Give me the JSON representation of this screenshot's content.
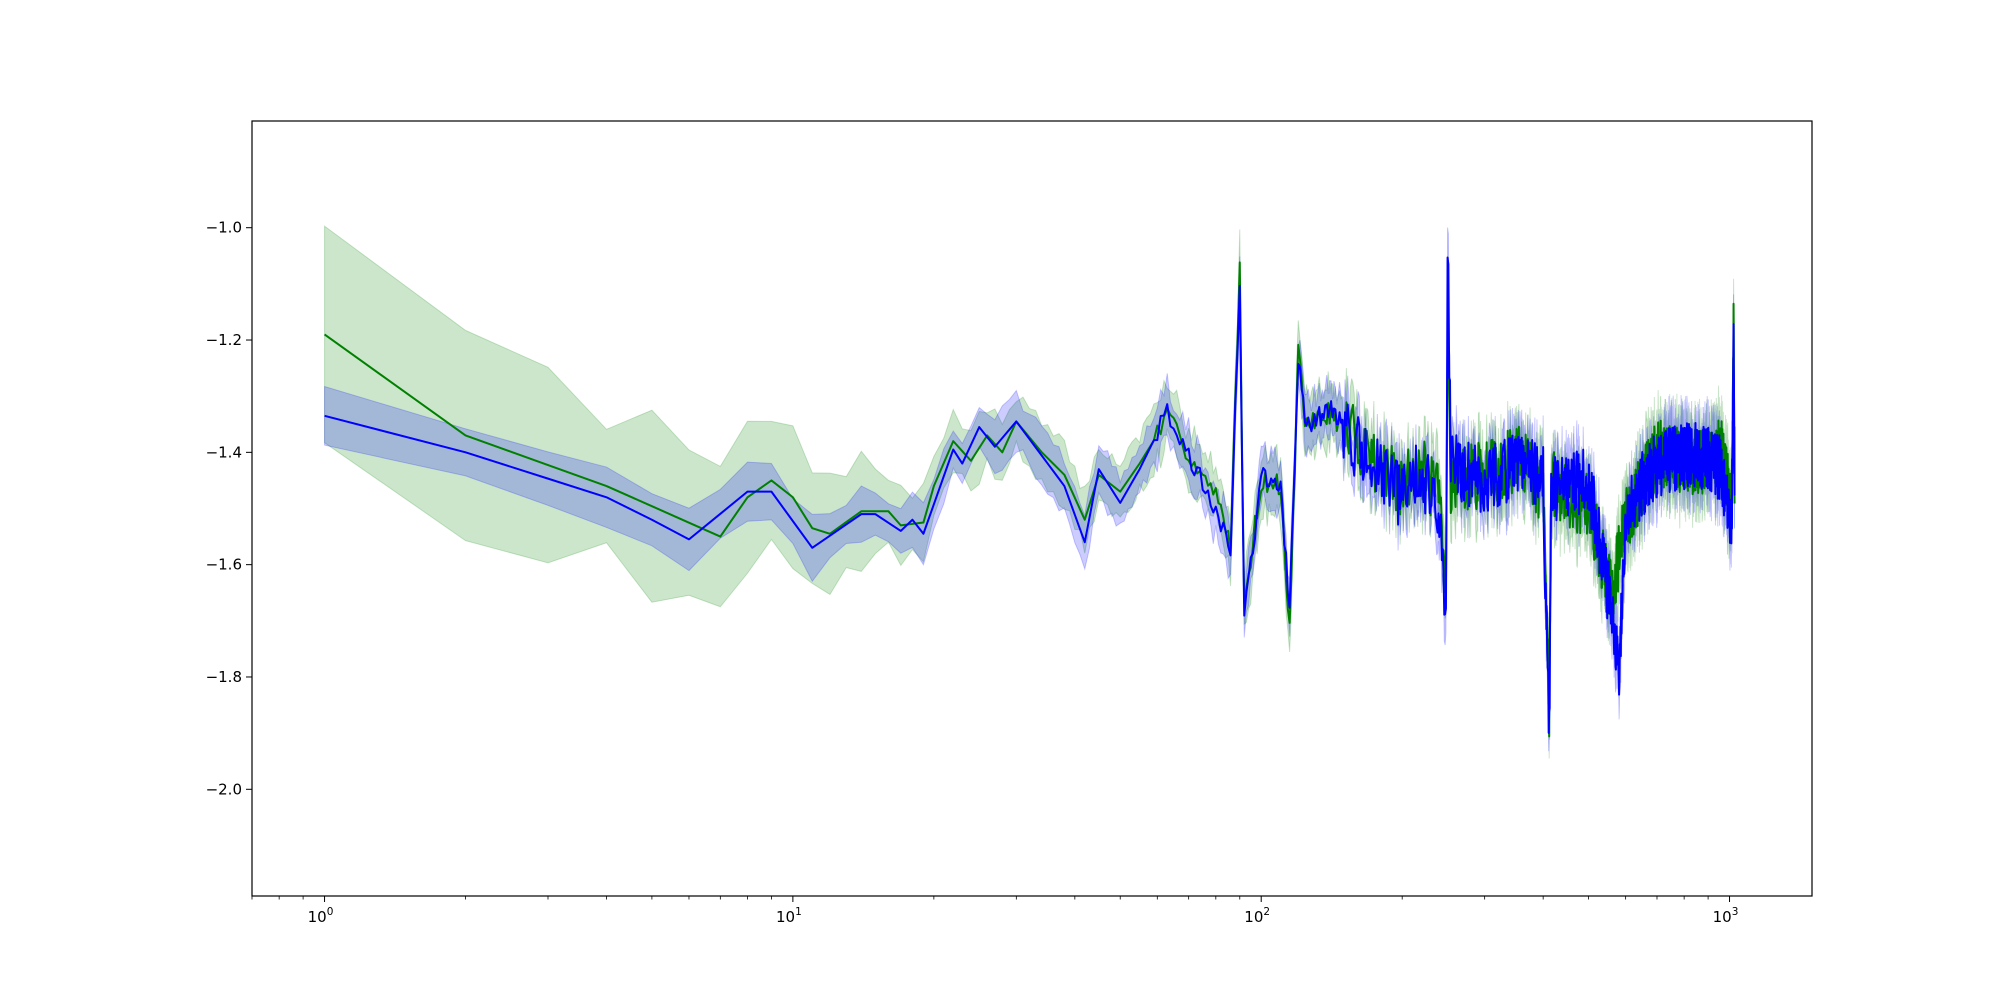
{
  "chart_data": {
    "type": "line",
    "title": "",
    "xlabel": "",
    "ylabel": "",
    "xscale": "log",
    "xlim": [
      0.7,
      1500
    ],
    "ylim": [
      -2.19,
      -0.81
    ],
    "grid": false,
    "legend": "none",
    "x_ticks": [
      {
        "value": 1,
        "base": "10",
        "exp": "0"
      },
      {
        "value": 10,
        "base": "10",
        "exp": "1"
      },
      {
        "value": 100,
        "base": "10",
        "exp": "2"
      },
      {
        "value": 1000,
        "base": "10",
        "exp": "3"
      }
    ],
    "y_ticks": [
      {
        "value": -1.0,
        "label": "−1.0"
      },
      {
        "value": -1.2,
        "label": "−1.2"
      },
      {
        "value": -1.4,
        "label": "−1.4"
      },
      {
        "value": -1.6,
        "label": "−1.6"
      },
      {
        "value": -1.8,
        "label": "−1.8"
      },
      {
        "value": -2.0,
        "label": "−2.0"
      }
    ],
    "series": [
      {
        "color": "#008000",
        "band_color": "#008000",
        "band_opacity": 0.2,
        "band_width": 0.05,
        "noise_seed": 7,
        "points": [
          [
            1,
            -1.19
          ],
          [
            2,
            -1.37
          ],
          [
            4,
            -1.46
          ],
          [
            7,
            -1.55
          ],
          [
            8,
            -1.48
          ],
          [
            9,
            -1.45
          ],
          [
            10,
            -1.48
          ],
          [
            11,
            -1.535
          ],
          [
            12,
            -1.545
          ],
          [
            14,
            -1.505
          ],
          [
            16,
            -1.505
          ],
          [
            17,
            -1.53
          ],
          [
            19,
            -1.525
          ],
          [
            20,
            -1.46
          ],
          [
            22,
            -1.38
          ],
          [
            24,
            -1.415
          ],
          [
            26,
            -1.37
          ],
          [
            28,
            -1.4
          ],
          [
            30,
            -1.345
          ],
          [
            34,
            -1.4
          ],
          [
            38,
            -1.44
          ],
          [
            42,
            -1.52
          ],
          [
            45,
            -1.44
          ],
          [
            50,
            -1.47
          ],
          [
            55,
            -1.42
          ],
          [
            63,
            -1.34
          ],
          [
            70,
            -1.4
          ],
          [
            80,
            -1.48
          ],
          [
            86,
            -1.56
          ],
          [
            90,
            -1.08
          ],
          [
            92,
            -1.67
          ],
          [
            100,
            -1.45
          ],
          [
            110,
            -1.46
          ],
          [
            115,
            -1.72
          ],
          [
            120,
            -1.22
          ],
          [
            124,
            -1.35
          ],
          [
            140,
            -1.33
          ],
          [
            170,
            -1.4
          ],
          [
            200,
            -1.47
          ],
          [
            215,
            -1.42
          ],
          [
            240,
            -1.48
          ],
          [
            248,
            -1.66
          ],
          [
            250,
            -1.16
          ],
          [
            254,
            -1.45
          ],
          [
            300,
            -1.44
          ],
          [
            360,
            -1.41
          ],
          [
            400,
            -1.47
          ],
          [
            412,
            -1.85
          ],
          [
            416,
            -1.45
          ],
          [
            500,
            -1.5
          ],
          [
            560,
            -1.65
          ],
          [
            600,
            -1.52
          ],
          [
            700,
            -1.4
          ],
          [
            850,
            -1.42
          ],
          [
            960,
            -1.4
          ],
          [
            1010,
            -1.5
          ],
          [
            1020,
            -1.18
          ],
          [
            1025,
            -1.45
          ]
        ]
      },
      {
        "color": "#0000ff",
        "band_color": "#0000ff",
        "band_opacity": 0.2,
        "band_width": 0.045,
        "noise_seed": 13,
        "points": [
          [
            1,
            -1.335
          ],
          [
            2,
            -1.4
          ],
          [
            4,
            -1.48
          ],
          [
            5,
            -1.52
          ],
          [
            6,
            -1.555
          ],
          [
            8,
            -1.47
          ],
          [
            9,
            -1.47
          ],
          [
            11,
            -1.57
          ],
          [
            14,
            -1.51
          ],
          [
            15,
            -1.51
          ],
          [
            17,
            -1.54
          ],
          [
            18,
            -1.52
          ],
          [
            19,
            -1.545
          ],
          [
            22,
            -1.395
          ],
          [
            23,
            -1.42
          ],
          [
            25,
            -1.355
          ],
          [
            27,
            -1.39
          ],
          [
            30,
            -1.345
          ],
          [
            35,
            -1.42
          ],
          [
            38,
            -1.46
          ],
          [
            42,
            -1.56
          ],
          [
            45,
            -1.43
          ],
          [
            50,
            -1.49
          ],
          [
            55,
            -1.43
          ],
          [
            63,
            -1.33
          ],
          [
            70,
            -1.41
          ],
          [
            80,
            -1.5
          ],
          [
            86,
            -1.58
          ],
          [
            90,
            -1.09
          ],
          [
            92,
            -1.7
          ],
          [
            100,
            -1.44
          ],
          [
            110,
            -1.47
          ],
          [
            115,
            -1.68
          ],
          [
            120,
            -1.23
          ],
          [
            125,
            -1.36
          ],
          [
            140,
            -1.32
          ],
          [
            170,
            -1.42
          ],
          [
            200,
            -1.48
          ],
          [
            215,
            -1.43
          ],
          [
            240,
            -1.5
          ],
          [
            248,
            -1.72
          ],
          [
            250,
            -1.02
          ],
          [
            254,
            -1.42
          ],
          [
            300,
            -1.45
          ],
          [
            360,
            -1.42
          ],
          [
            400,
            -1.45
          ],
          [
            412,
            -1.92
          ],
          [
            416,
            -1.47
          ],
          [
            500,
            -1.45
          ],
          [
            560,
            -1.68
          ],
          [
            580,
            -1.8
          ],
          [
            600,
            -1.5
          ],
          [
            700,
            -1.42
          ],
          [
            850,
            -1.4
          ],
          [
            960,
            -1.43
          ],
          [
            1010,
            -1.55
          ],
          [
            1020,
            -1.22
          ],
          [
            1025,
            -1.46
          ]
        ]
      }
    ]
  }
}
